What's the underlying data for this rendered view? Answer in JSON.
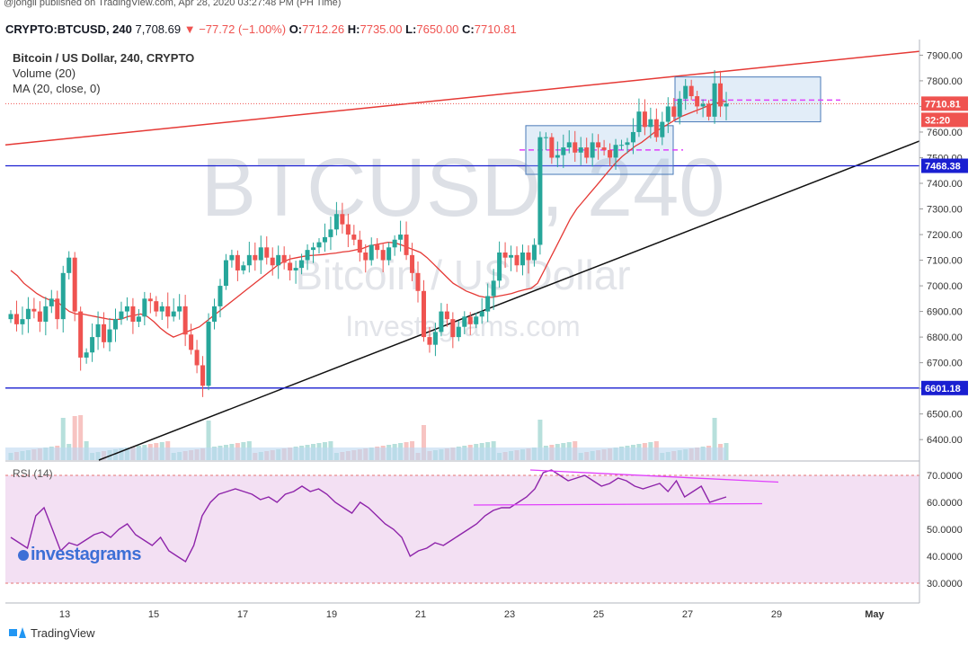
{
  "published_line": "@jongii published on TradingView.com, Apr 28, 2020 03:27:48 PM (PH Time)",
  "ticker": {
    "symbol": "CRYPTO:BTCUSD, 240",
    "last": "7,708.69",
    "change": "▼ −77.72 (−1.00%)",
    "o_label": "O:",
    "o": "7712.26",
    "h_label": "H:",
    "h": "7735.00",
    "l_label": "L:",
    "l": "7650.00",
    "c_label": "C:",
    "c": "7710.81"
  },
  "legend": {
    "title": "Bitcoin / US Dollar, 240, CRYPTO",
    "volume": "Volume (20)",
    "ma": "MA (20, close, 0)"
  },
  "watermark": {
    "symbol": "BTCUSD, 240",
    "name": "Bitcoin / US Dollar",
    "site": "Investagrams.com",
    "logo": "investagrams"
  },
  "colors": {
    "up": "#26a69a",
    "down": "#ef5350",
    "ma": "#e53935",
    "resistance": "#e53935",
    "support_h": "#1a1fd1",
    "trendline": "#111111",
    "rsi": "#8e24aa",
    "rsi_band": "#f3e0f3",
    "annot": "#e040fb"
  },
  "price_labels": {
    "last": "7710.81",
    "countdown": "32:20",
    "level_high": "7468.38",
    "level_low": "6601.18"
  },
  "footer": {
    "brand": "TradingView"
  },
  "chart_data": [
    {
      "type": "candlestick",
      "title": "Bitcoin / US Dollar, 240, CRYPTO",
      "xlabel": "",
      "ylabel": "",
      "x_ticks": [
        "13",
        "15",
        "17",
        "19",
        "21",
        "23",
        "25",
        "27",
        "29",
        "May"
      ],
      "y_ticks": [
        "6400.00",
        "6500.00",
        "6600.00",
        "6700.00",
        "6800.00",
        "6900.00",
        "7000.00",
        "7100.00",
        "7200.00",
        "7300.00",
        "7400.00",
        "7500.00",
        "7600.00",
        "7700.00",
        "7800.00",
        "7900.00"
      ],
      "ylim": [
        6320,
        7940
      ],
      "closes": [
        6890,
        6850,
        6870,
        6910,
        6900,
        6860,
        6920,
        6950,
        6870,
        7050,
        7110,
        6900,
        6720,
        6740,
        6800,
        6850,
        6780,
        6830,
        6870,
        6900,
        6920,
        6860,
        6880,
        6950,
        6940,
        6900,
        6920,
        6880,
        6900,
        6920,
        6810,
        6750,
        6690,
        6610,
        6860,
        6920,
        7000,
        7100,
        7120,
        7060,
        7080,
        7120,
        7100,
        7150,
        7110,
        7080,
        7120,
        7090,
        7060,
        7070,
        7100,
        7140,
        7150,
        7170,
        7190,
        7220,
        7280,
        7240,
        7200,
        7180,
        7130,
        7100,
        7160,
        7140,
        7100,
        7150,
        7180,
        7200,
        7120,
        7050,
        6980,
        6800,
        6770,
        6820,
        6900,
        6870,
        6800,
        6840,
        6880,
        6850,
        6880,
        6900,
        6960,
        7020,
        7130,
        7110,
        7120,
        7080,
        7130,
        7100,
        7160,
        7580,
        7580,
        7500,
        7510,
        7540,
        7560,
        7520,
        7540,
        7500,
        7560,
        7540,
        7530,
        7500,
        7550,
        7550,
        7560,
        7600,
        7680,
        7620,
        7650,
        7580,
        7640,
        7700,
        7660,
        7730,
        7780,
        7740,
        7700,
        7710,
        7660,
        7790,
        7700,
        7711
      ],
      "series": [
        {
          "name": "MA (20, close, 0)",
          "values": [
            7060,
            7040,
            7010,
            6990,
            6970,
            6955,
            6945,
            6940,
            6920,
            6900,
            6890,
            6890,
            6885,
            6880,
            6875,
            6870,
            6868,
            6870,
            6880,
            6885,
            6890,
            6880,
            6860,
            6835,
            6815,
            6800,
            6810,
            6820,
            6830,
            6840,
            6860,
            6880,
            6900,
            6920,
            6940,
            6960,
            6980,
            7000,
            7020,
            7040,
            7060,
            7080,
            7095,
            7105,
            7110,
            7115,
            7118,
            7120,
            7122,
            7125,
            7128,
            7132,
            7135,
            7140,
            7145,
            7155,
            7160,
            7165,
            7170,
            7168,
            7160,
            7150,
            7140,
            7130,
            7110,
            7085,
            7060,
            7035,
            7010,
            6995,
            6980,
            6970,
            6960,
            6955,
            6955,
            6960,
            6965,
            6970,
            6978,
            6985,
            6990,
            7010,
            7060,
            7110,
            7160,
            7210,
            7260,
            7300,
            7330,
            7360,
            7390,
            7420,
            7450,
            7480,
            7505,
            7525,
            7545,
            7560,
            7580,
            7600,
            7615,
            7630,
            7645,
            7660,
            7670,
            7680,
            7690,
            7700,
            7710,
            7716,
            7720
          ]
        },
        {
          "name": "Volume (20)",
          "values": []
        }
      ],
      "levels": [
        7468.38,
        6601.18
      ],
      "annotations": [
        "7710.81",
        "32:20",
        "7468.38",
        "6601.18"
      ]
    },
    {
      "type": "line",
      "title": "RSI (14)",
      "xlabel": "",
      "ylabel": "",
      "y_ticks": [
        "30.0000",
        "40.0000",
        "50.0000",
        "60.0000",
        "70.0000"
      ],
      "ylim": [
        28,
        75
      ],
      "bands": [
        30,
        70
      ],
      "series": [
        {
          "name": "RSI (14)",
          "values": [
            47,
            45,
            43,
            55,
            58,
            50,
            42,
            45,
            44,
            46,
            48,
            49,
            47,
            50,
            52,
            48,
            46,
            44,
            47,
            42,
            40,
            38,
            44,
            55,
            60,
            63,
            64,
            65,
            64,
            63,
            61,
            62,
            60,
            63,
            64,
            66,
            64,
            65,
            63,
            60,
            58,
            56,
            60,
            58,
            55,
            52,
            50,
            47,
            40,
            42,
            43,
            45,
            44,
            46,
            48,
            50,
            52,
            55,
            57,
            58,
            58,
            60,
            62,
            65,
            71,
            72,
            70,
            68,
            69,
            70,
            68,
            66,
            67,
            69,
            68,
            66,
            65,
            66,
            67,
            64,
            68,
            62,
            64,
            66,
            60,
            61,
            62
          ]
        }
      ]
    }
  ]
}
